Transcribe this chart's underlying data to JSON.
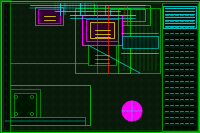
{
  "bg_color": "#0a1a0a",
  "dot_color": "#1a4a1a",
  "border_color": "#2a5a2a",
  "colors": {
    "cyan": "#00ffff",
    "magenta": "#ff00ff",
    "yellow": "#ffff00",
    "green": "#00cc00",
    "lime": "#88ff00",
    "red": "#ff2200",
    "white": "#ffffff",
    "orange": "#ffaa00",
    "dark_green": "#005500"
  },
  "figsize": [
    2.0,
    1.33
  ],
  "dpi": 100
}
